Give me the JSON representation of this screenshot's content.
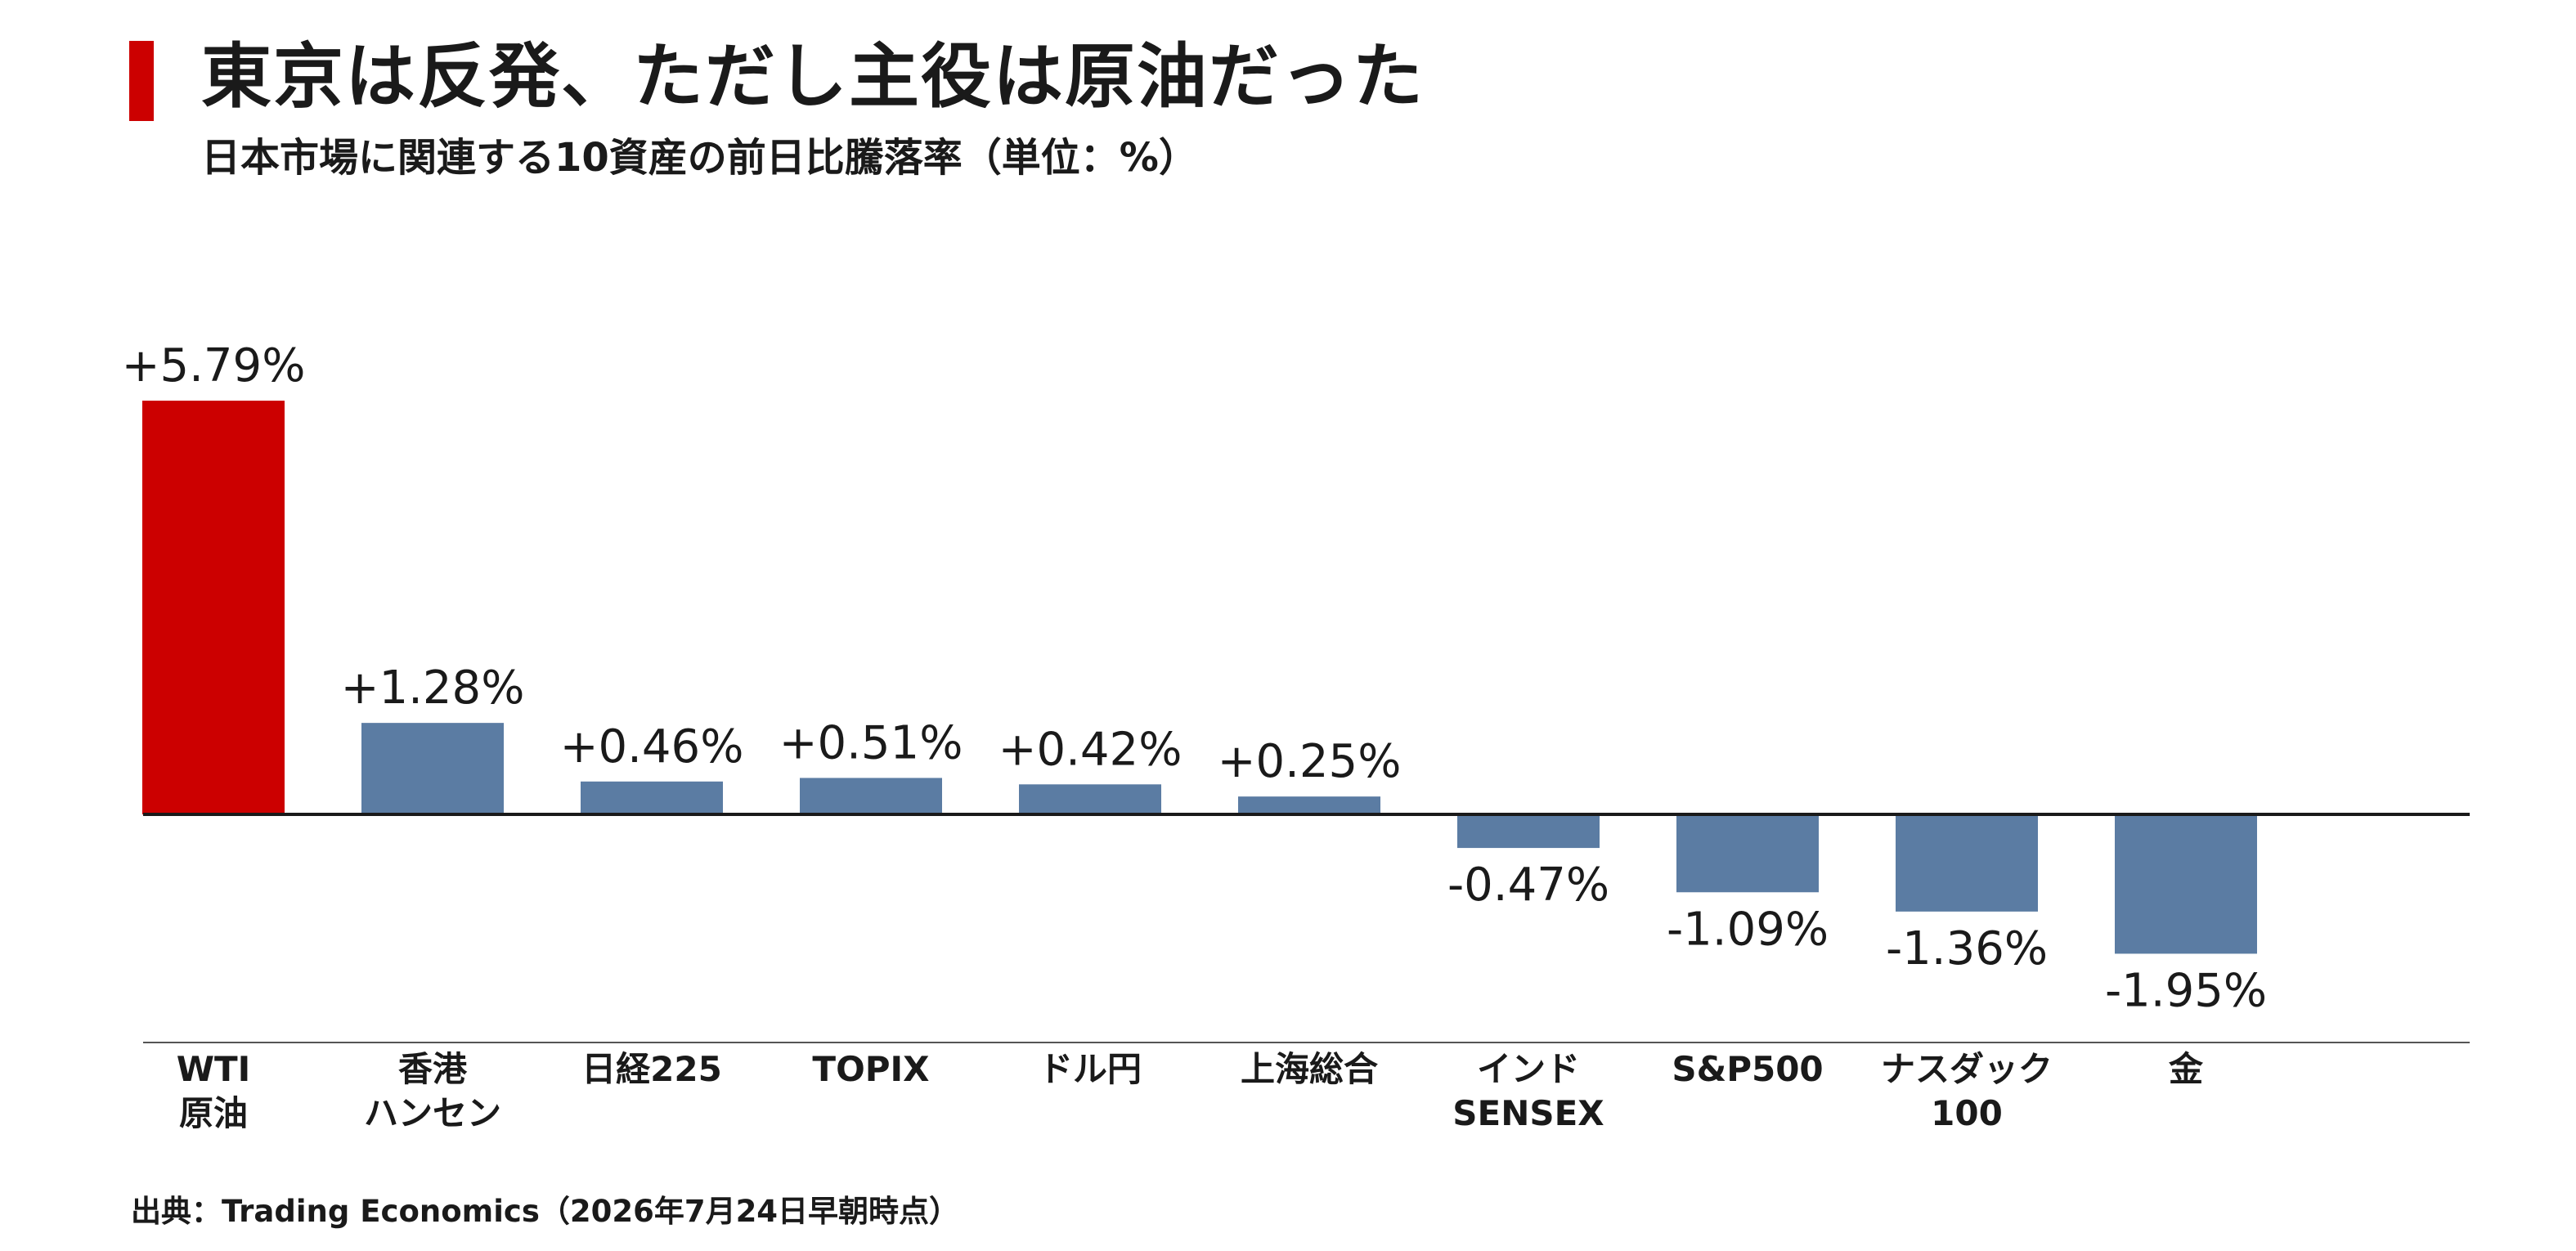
{
  "title": "東京は反発、ただし主役は原油だった",
  "subtitle": "日本市場に関連する10資産の前日比騰落率（単位：%）",
  "source": "出典：Trading Economics（2026年7月24日早朝時点）",
  "colors": {
    "accent": "#cc0000",
    "bar_default": "#5b7ca3",
    "bar_highlight": "#cc0000",
    "axis": "#1a1a1a"
  },
  "chart_data": {
    "type": "bar",
    "title": "東京は反発、ただし主役は原油だった",
    "subtitle": "日本市場に関連する10資産の前日比騰落率（単位：%）",
    "categories": [
      [
        "WTI",
        "原油"
      ],
      [
        "香港",
        "ハンセン"
      ],
      [
        "日経225"
      ],
      [
        "TOPIX"
      ],
      [
        "ドル円"
      ],
      [
        "上海総合"
      ],
      [
        "インド",
        "SENSEX"
      ],
      [
        "S&P500"
      ],
      [
        "ナスダック",
        "100"
      ],
      [
        "金"
      ]
    ],
    "values": [
      5.79,
      1.28,
      0.46,
      0.51,
      0.42,
      0.25,
      -0.47,
      -1.09,
      -1.36,
      -1.95
    ],
    "data_labels": [
      "+5.79%",
      "+1.28%",
      "+0.46%",
      "+0.51%",
      "+0.42%",
      "+0.25%",
      "-0.47%",
      "-1.09%",
      "-1.36%",
      "-1.95%"
    ],
    "highlight_index": 0,
    "ylim": [
      -3.19,
      5.79
    ],
    "xlabel": "",
    "ylabel": "",
    "grid": false,
    "legend": "none"
  }
}
